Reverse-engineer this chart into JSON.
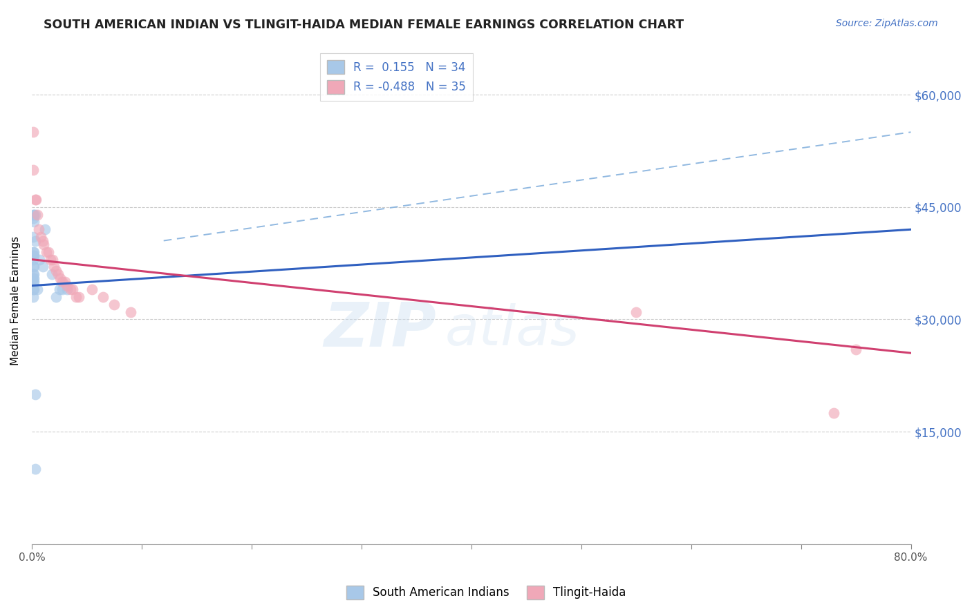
{
  "title": "SOUTH AMERICAN INDIAN VS TLINGIT-HAIDA MEDIAN FEMALE EARNINGS CORRELATION CHART",
  "source": "Source: ZipAtlas.com",
  "ylabel": "Median Female Earnings",
  "yticks": [
    0,
    15000,
    30000,
    45000,
    60000
  ],
  "ytick_labels": [
    "",
    "$15,000",
    "$30,000",
    "$45,000",
    "$60,000"
  ],
  "xlim": [
    0.0,
    0.8
  ],
  "ylim": [
    0,
    65000
  ],
  "legend_label1": "South American Indians",
  "legend_label2": "Tlingit-Haida",
  "blue_color": "#a8c8e8",
  "pink_color": "#f0a8b8",
  "blue_scatter": [
    [
      0.001,
      44000
    ],
    [
      0.002,
      44000
    ],
    [
      0.003,
      44000
    ],
    [
      0.001,
      43500
    ],
    [
      0.002,
      43000
    ],
    [
      0.001,
      41000
    ],
    [
      0.003,
      40500
    ],
    [
      0.001,
      39000
    ],
    [
      0.002,
      39000
    ],
    [
      0.001,
      38500
    ],
    [
      0.002,
      38500
    ],
    [
      0.001,
      38000
    ],
    [
      0.001,
      37000
    ],
    [
      0.002,
      37000
    ],
    [
      0.001,
      36000
    ],
    [
      0.002,
      36000
    ],
    [
      0.001,
      35500
    ],
    [
      0.002,
      35500
    ],
    [
      0.001,
      35000
    ],
    [
      0.002,
      35000
    ],
    [
      0.001,
      34000
    ],
    [
      0.002,
      34000
    ],
    [
      0.001,
      33000
    ],
    [
      0.005,
      34000
    ],
    [
      0.007,
      38000
    ],
    [
      0.01,
      37000
    ],
    [
      0.012,
      42000
    ],
    [
      0.018,
      36000
    ],
    [
      0.022,
      33000
    ],
    [
      0.025,
      34000
    ],
    [
      0.028,
      34000
    ],
    [
      0.032,
      34000
    ],
    [
      0.003,
      20000
    ],
    [
      0.003,
      10000
    ]
  ],
  "pink_scatter": [
    [
      0.001,
      55000
    ],
    [
      0.001,
      50000
    ],
    [
      0.003,
      46000
    ],
    [
      0.004,
      46000
    ],
    [
      0.005,
      44000
    ],
    [
      0.006,
      42000
    ],
    [
      0.008,
      41000
    ],
    [
      0.01,
      40500
    ],
    [
      0.011,
      40000
    ],
    [
      0.013,
      39000
    ],
    [
      0.015,
      39000
    ],
    [
      0.017,
      38000
    ],
    [
      0.019,
      38000
    ],
    [
      0.02,
      37000
    ],
    [
      0.022,
      36500
    ],
    [
      0.024,
      36000
    ],
    [
      0.026,
      35500
    ],
    [
      0.028,
      35000
    ],
    [
      0.03,
      35000
    ],
    [
      0.032,
      34500
    ],
    [
      0.035,
      34000
    ],
    [
      0.037,
      34000
    ],
    [
      0.04,
      33000
    ],
    [
      0.043,
      33000
    ],
    [
      0.055,
      34000
    ],
    [
      0.065,
      33000
    ],
    [
      0.075,
      32000
    ],
    [
      0.09,
      31000
    ],
    [
      0.55,
      31000
    ],
    [
      0.73,
      17500
    ],
    [
      0.75,
      26000
    ]
  ],
  "blue_line": [
    [
      0.0,
      34500
    ],
    [
      0.8,
      42000
    ]
  ],
  "pink_line": [
    [
      0.0,
      38000
    ],
    [
      0.8,
      25500
    ]
  ],
  "dashed_line": [
    [
      0.12,
      40500
    ],
    [
      0.8,
      55000
    ]
  ]
}
